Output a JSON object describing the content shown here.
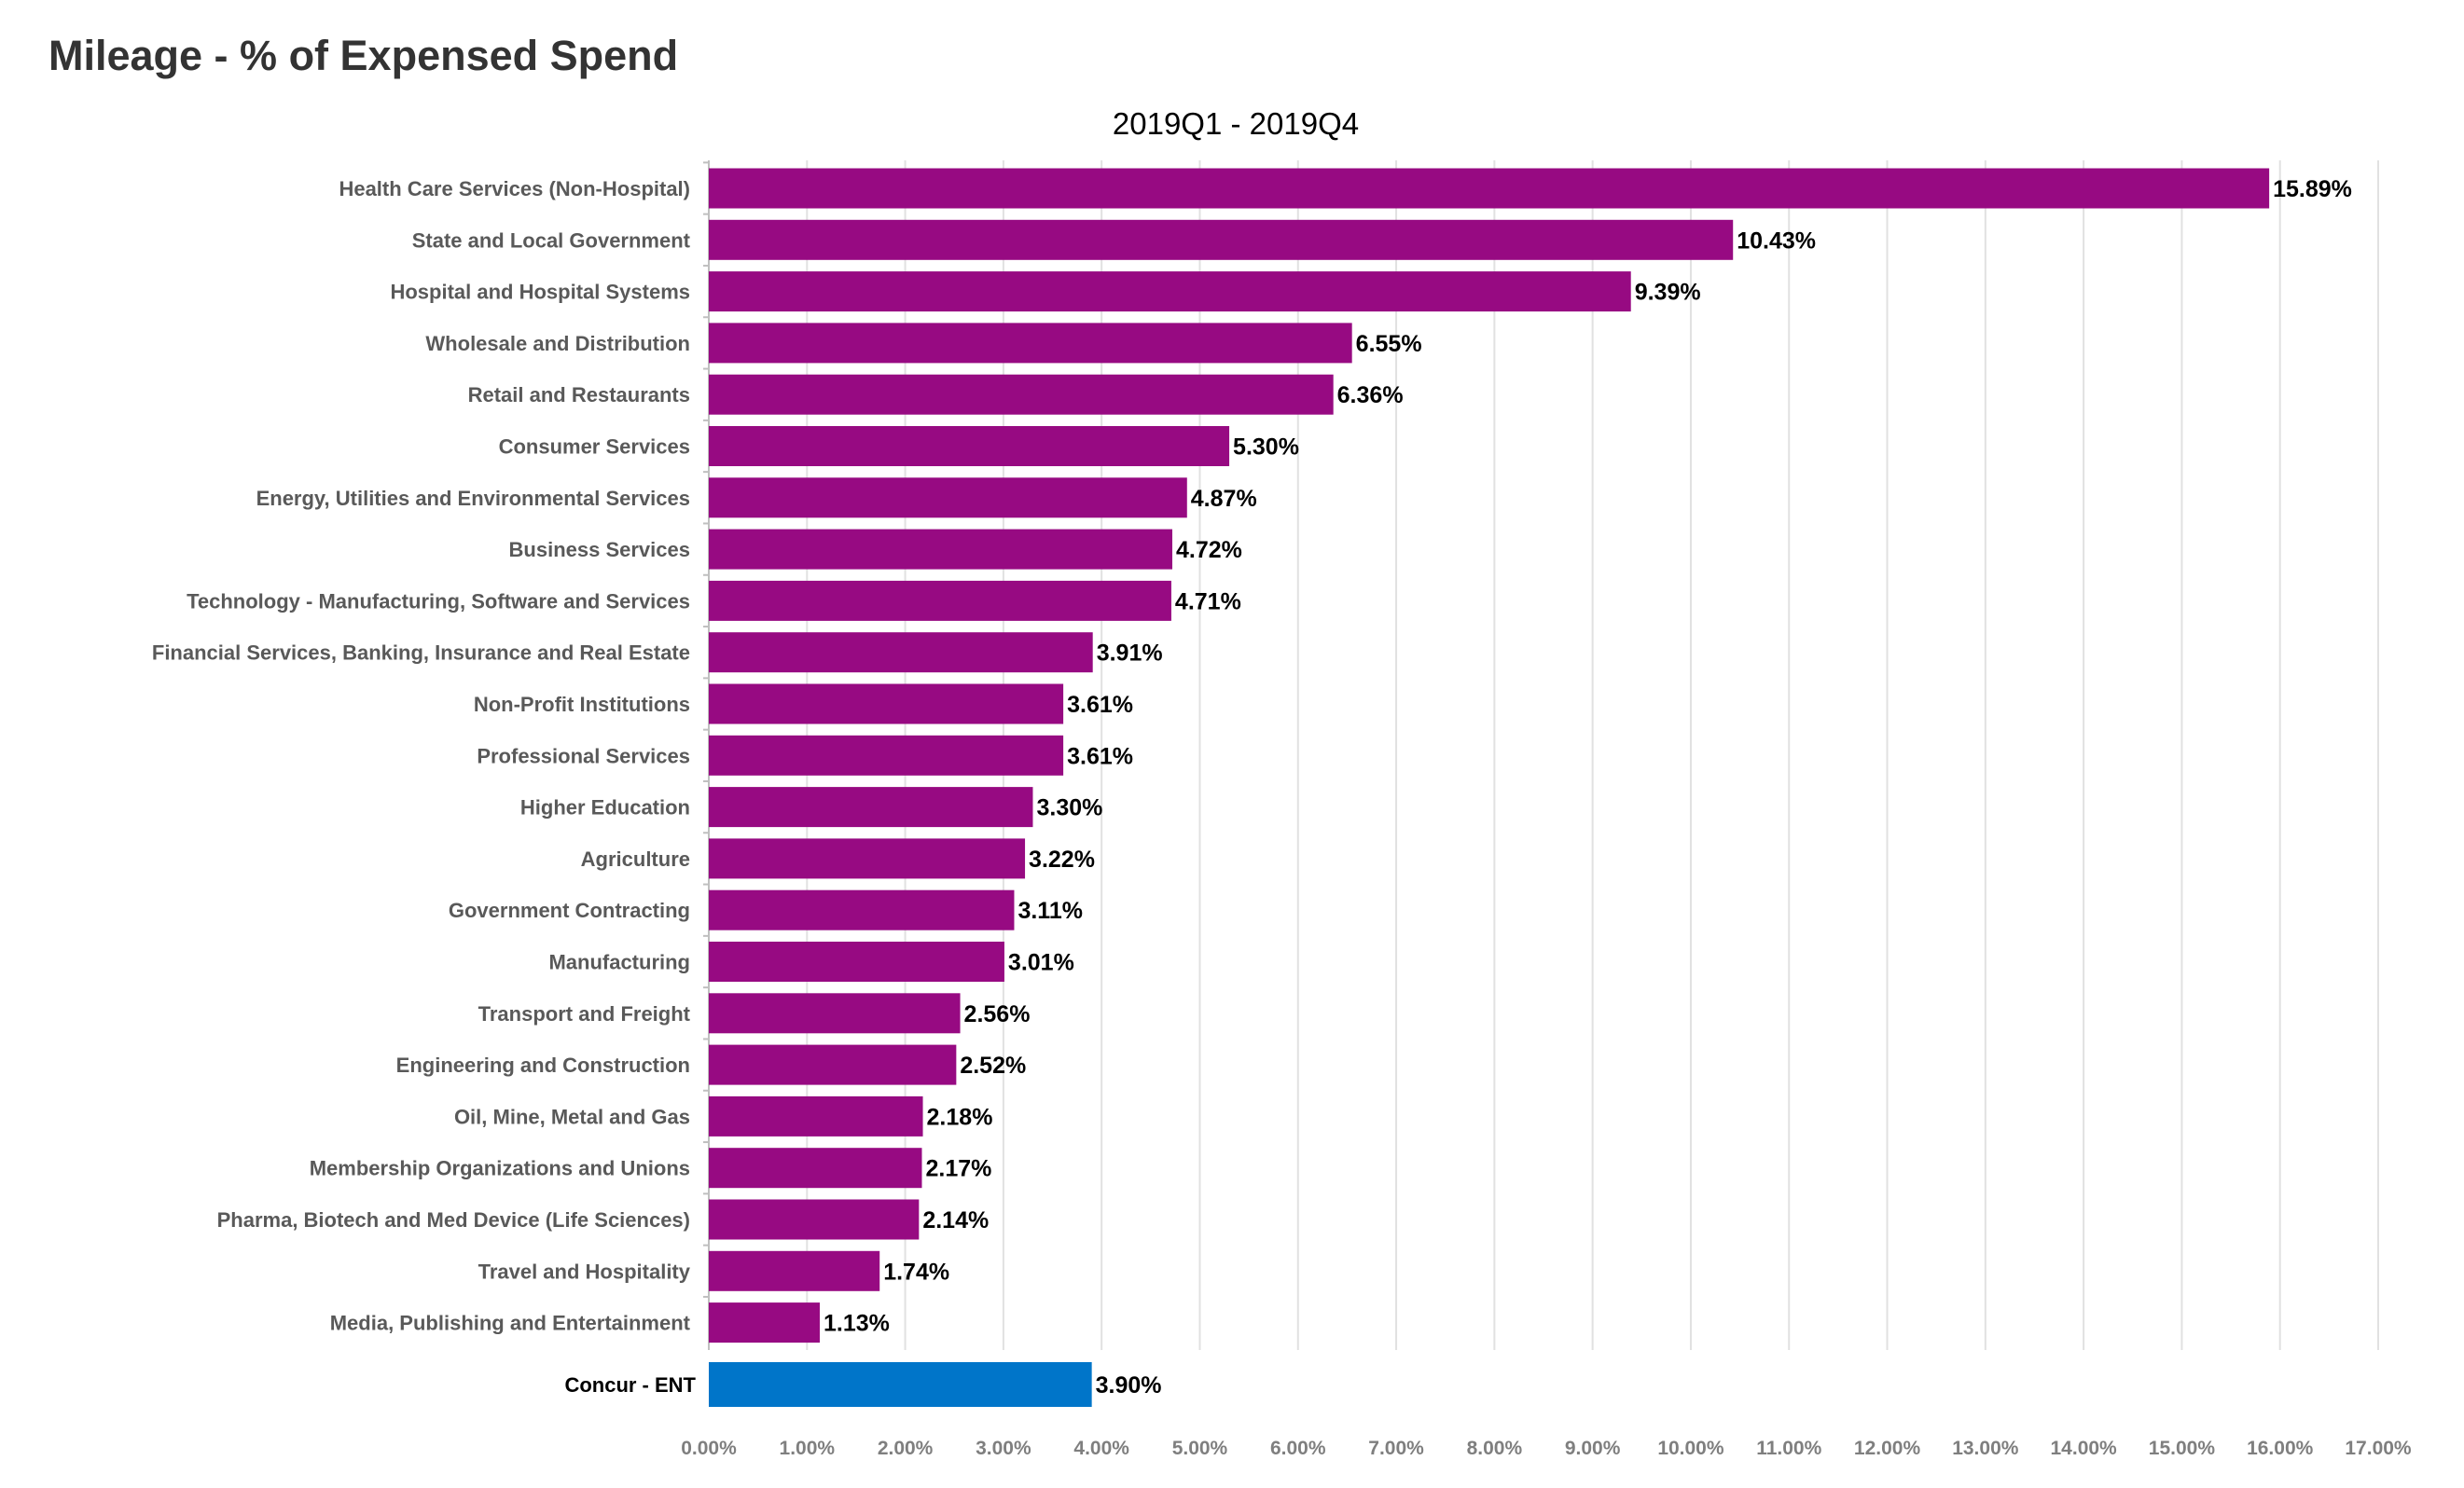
{
  "title": "Mileage - % of Expensed Spend",
  "subtitle": "2019Q1 - 2019Q4",
  "chart_data": {
    "type": "bar",
    "orientation": "horizontal",
    "categories": [
      "Health Care Services (Non-Hospital)",
      "State and Local Government",
      "Hospital and Hospital Systems",
      "Wholesale and Distribution",
      "Retail and Restaurants",
      "Consumer Services",
      "Energy, Utilities and Environmental Services",
      "Business Services",
      "Technology - Manufacturing, Software and Services",
      "Financial Services, Banking, Insurance and Real Estate",
      "Non-Profit Institutions",
      "Professional Services",
      "Higher Education",
      "Agriculture",
      "Government Contracting",
      "Manufacturing",
      "Transport and Freight",
      "Engineering and Construction",
      "Oil, Mine, Metal and Gas",
      "Membership Organizations and Unions",
      "Pharma, Biotech and Med Device (Life Sciences)",
      "Travel and Hospitality",
      "Media, Publishing and Entertainment"
    ],
    "values": [
      15.89,
      10.43,
      9.39,
      6.55,
      6.36,
      5.3,
      4.87,
      4.72,
      4.71,
      3.91,
      3.61,
      3.61,
      3.3,
      3.22,
      3.11,
      3.01,
      2.56,
      2.52,
      2.18,
      2.17,
      2.14,
      1.74,
      1.13
    ],
    "value_labels": [
      "15.89%",
      "10.43%",
      "9.39%",
      "6.55%",
      "6.36%",
      "5.30%",
      "4.87%",
      "4.72%",
      "4.71%",
      "3.91%",
      "3.61%",
      "3.61%",
      "3.30%",
      "3.22%",
      "3.11%",
      "3.01%",
      "2.56%",
      "2.52%",
      "2.18%",
      "2.17%",
      "2.14%",
      "1.74%",
      "1.13%"
    ],
    "benchmark": {
      "label": "Concur - ENT",
      "value": 3.9,
      "value_label": "3.90%"
    },
    "x_ticks": [
      "0.00%",
      "1.00%",
      "2.00%",
      "3.00%",
      "4.00%",
      "5.00%",
      "6.00%",
      "7.00%",
      "8.00%",
      "9.00%",
      "10.00%",
      "11.00%",
      "12.00%",
      "13.00%",
      "14.00%",
      "15.00%",
      "16.00%",
      "17.00%"
    ],
    "xlim": [
      0,
      17
    ],
    "grid": "vertical",
    "legend": "none",
    "colors": {
      "bar": "#970A82",
      "benchmark": "#0075C9",
      "grid": "#E1E1E1"
    }
  }
}
